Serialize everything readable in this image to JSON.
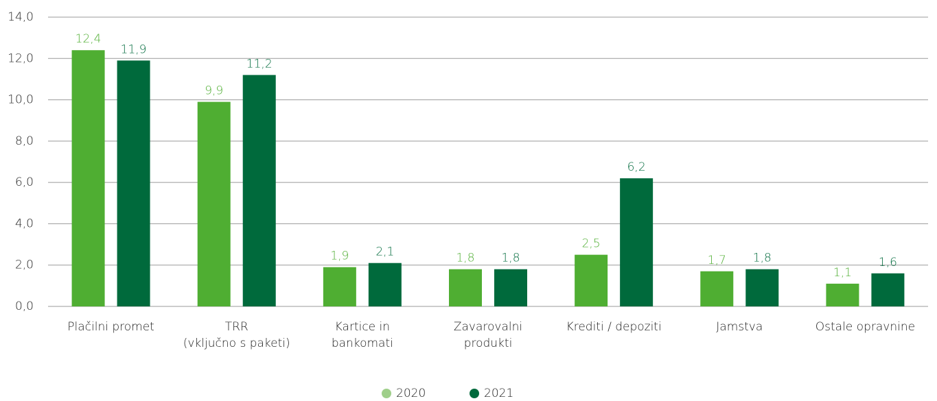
{
  "chart_data": {
    "type": "bar",
    "categories": [
      [
        "Plačilni promet"
      ],
      [
        "TRR",
        "(vključno s paketi)"
      ],
      [
        "Kartice in",
        "bankomati"
      ],
      [
        "Zavarovalni",
        "produkti"
      ],
      [
        "Krediti / depoziti"
      ],
      [
        "Jamstva"
      ],
      [
        "Ostale opravnine"
      ]
    ],
    "series": [
      {
        "name": "2020",
        "color": "#4fae32",
        "values": [
          12.4,
          9.9,
          1.9,
          1.8,
          2.5,
          1.7,
          1.1
        ],
        "value_labels": [
          "12,4",
          "9,9",
          "1,9",
          "1,8",
          "2,5",
          "1,7",
          "1,1"
        ]
      },
      {
        "name": "2021",
        "color": "#006a3c",
        "values": [
          11.9,
          11.2,
          2.1,
          1.8,
          6.2,
          1.8,
          1.6
        ],
        "value_labels": [
          "11,9",
          "11,2",
          "2,1",
          "1,8",
          "6,2",
          "1,8",
          "1,6"
        ]
      }
    ],
    "ylim": [
      0,
      14
    ],
    "yticks": [
      {
        "value": 0,
        "label": "0,0"
      },
      {
        "value": 2,
        "label": "2,0"
      },
      {
        "value": 4,
        "label": "4,0"
      },
      {
        "value": 6,
        "label": "6,0"
      },
      {
        "value": 8,
        "label": "8,0"
      },
      {
        "value": 10,
        "label": "10,0"
      },
      {
        "value": 12,
        "label": "12,0"
      },
      {
        "value": 14,
        "label": "14,0"
      }
    ],
    "grid": true,
    "legend": "bottom"
  }
}
